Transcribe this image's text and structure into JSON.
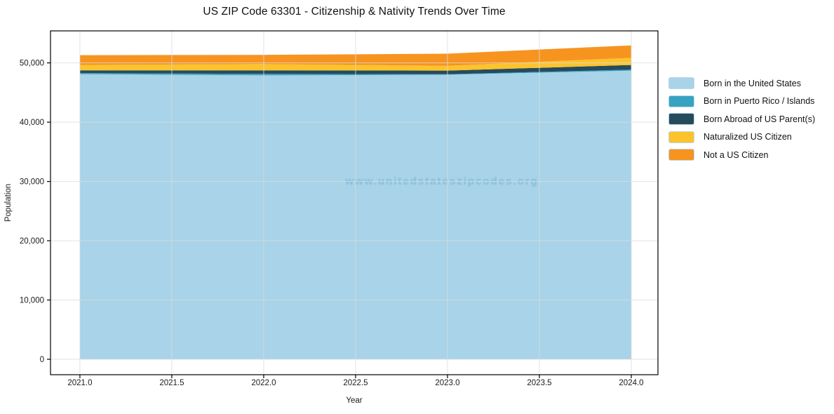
{
  "title": "US ZIP Code 63301 - Citizenship & Nativity Trends Over Time",
  "watermark": "www.unitedstateszipcodes.org",
  "colors": {
    "grid": "#dcdcdc",
    "spine": "#000000",
    "text": "#1a1a1a",
    "watermark": "#5ba3c9",
    "background": "#ffffff"
  },
  "chart_data": {
    "type": "area",
    "stacked": true,
    "title": "US ZIP Code 63301 - Citizenship & Nativity Trends Over Time",
    "xlabel": "Year",
    "ylabel": "Population",
    "x": [
      2021,
      2022,
      2023,
      2024
    ],
    "series": [
      {
        "name": "Born in the United States",
        "color": "#a8d3e8",
        "values": [
          48100,
          47900,
          48000,
          48700
        ]
      },
      {
        "name": "Born in Puerto Rico / Islands",
        "color": "#38a3c1",
        "values": [
          200,
          250,
          100,
          150
        ]
      },
      {
        "name": "Born Abroad of US Parent(s)",
        "color": "#264b5d",
        "values": [
          450,
          600,
          600,
          800
        ]
      },
      {
        "name": "Naturalized US Citizen",
        "color": "#fcc32d",
        "values": [
          900,
          1050,
          800,
          1200
        ]
      },
      {
        "name": "Not a US Citizen",
        "color": "#f79420",
        "values": [
          1650,
          1550,
          2050,
          2100
        ]
      }
    ],
    "stack_totals": [
      51300,
      51350,
      51550,
      52950
    ],
    "xlim": [
      2020.84,
      2024.145
    ],
    "ylim": [
      -2600,
      55400
    ],
    "xticks": {
      "values": [
        2021.0,
        2021.5,
        2022.0,
        2022.5,
        2023.0,
        2023.5,
        2024.0
      ],
      "labels": [
        "2021.0",
        "2021.5",
        "2022.0",
        "2022.5",
        "2023.0",
        "2023.5",
        "2024.0"
      ]
    },
    "yticks": {
      "values": [
        0,
        10000,
        20000,
        30000,
        40000,
        50000
      ],
      "labels": [
        "0",
        "10,000",
        "20,000",
        "30,000",
        "40,000",
        "50,000"
      ]
    },
    "grid": true,
    "grid_on_top": true,
    "legend_position": "right-outside"
  }
}
